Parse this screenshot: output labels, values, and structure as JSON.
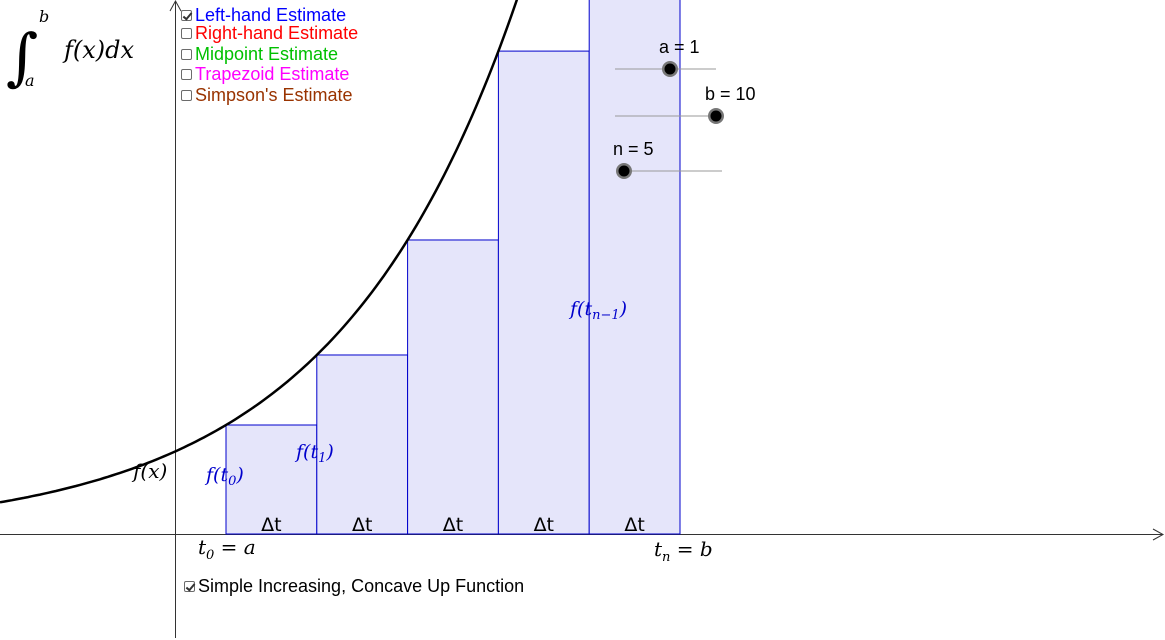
{
  "integral": {
    "symbol": "∫",
    "lower": "a",
    "upper": "b",
    "integrand": "f(x)dx"
  },
  "checkboxes": [
    {
      "label": "Left-hand Estimate",
      "checked": true,
      "color": "#0000ff"
    },
    {
      "label": "Right-hand Estimate",
      "checked": false,
      "color": "#ff0000"
    },
    {
      "label": "Midpoint Estimate",
      "checked": false,
      "color": "#00c000"
    },
    {
      "label": "Trapezoid Estimate",
      "checked": false,
      "color": "#ff00ff"
    },
    {
      "label": "Simpson's Estimate",
      "checked": false,
      "color": "#993300"
    }
  ],
  "sliders": {
    "a": {
      "label": "a = 1",
      "value": 1
    },
    "b": {
      "label": "b = 10",
      "value": 10
    },
    "n": {
      "label": "n = 5",
      "value": 5
    }
  },
  "function_checkbox": {
    "label": "Simple Increasing, Concave Up Function",
    "checked": true
  },
  "graph": {
    "curve_label": "f(x)",
    "rect_labels": [
      "f(t0)",
      "f(t1)",
      "f(tn−1)"
    ],
    "delta_label": "Δt",
    "t0_label": "t0 = a",
    "tn_label": "tn = b",
    "rect_count": 5,
    "rect_fill": "#e5e5fa",
    "rect_stroke": "#0000cc",
    "curve_color": "#000000"
  }
}
